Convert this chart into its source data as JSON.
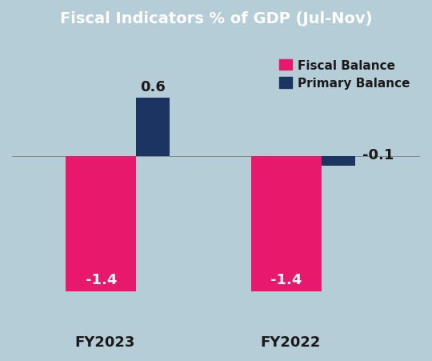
{
  "title": "Fiscal Indicators % of GDP (Jul-Nov)",
  "title_bg_color": "#C8922A",
  "title_text_color": "#FFFFFF",
  "bg_color": "#b5cdd6",
  "categories": [
    "FY2023",
    "FY2022"
  ],
  "fiscal_balance": [
    -1.4,
    -1.4
  ],
  "primary_balance": [
    0.6,
    -0.1
  ],
  "fiscal_color": "#E8186D",
  "primary_color": "#1C3461",
  "fiscal_bar_width": 0.38,
  "primary_bar_width": 0.18,
  "ylim": [
    -1.75,
    1.1
  ],
  "xlim": [
    -0.5,
    1.7
  ],
  "legend_fiscal": "Fiscal Balance",
  "legend_primary": "Primary Balance",
  "fiscal_label_color": "#FFFFFF",
  "primary_label_above_color": "#1a1a1a",
  "primary_label_right_color": "#1a1a1a",
  "xlabel_color": "#1a1a1a",
  "xlabel_fontsize": 13,
  "value_fontsize": 13,
  "title_fontsize": 14,
  "legend_fontsize": 11
}
